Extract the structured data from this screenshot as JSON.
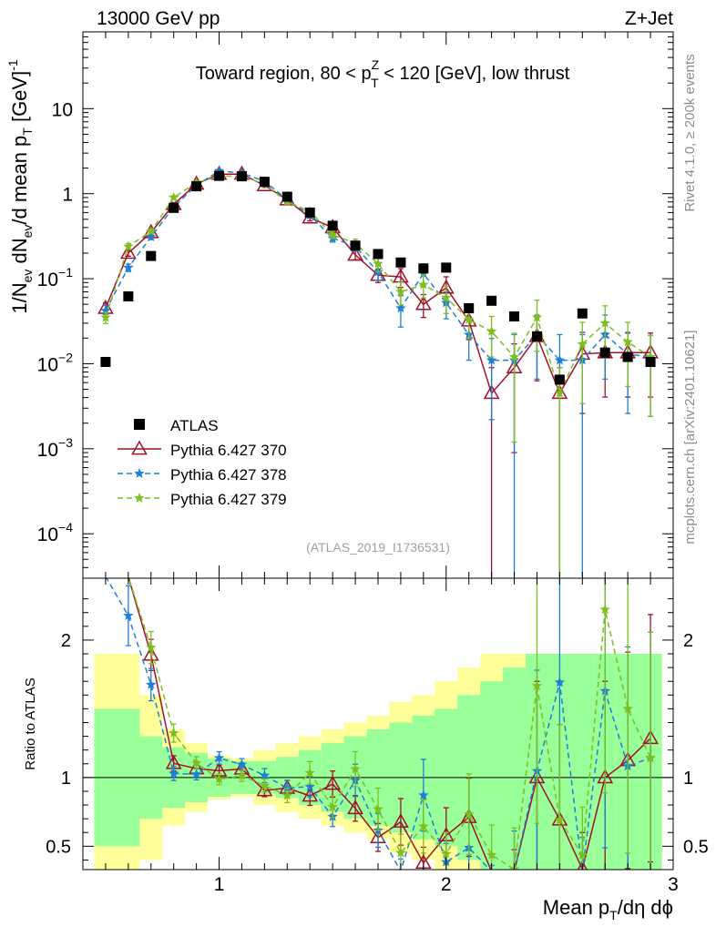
{
  "header": {
    "left": "13000 GeV pp",
    "right": "Z+Jet"
  },
  "side_labels": {
    "top": "Rivet 4.1.0, ≥ 200k events",
    "bottom": "mcplots.cern.ch [arXiv:2401.10621]"
  },
  "chart_data": {
    "type": "scatter",
    "title": "Toward region, 80 < pT^Z < 120 [GeV], low thrust",
    "title_parts": {
      "pre": "Toward region, 80 < p",
      "sup": "Z",
      "sub": "T",
      "post": " < 120 [GeV], low thrust"
    },
    "watermark": "(ATLAS_2019_I1736531)",
    "xlabel": "Mean pT/dη dϕ",
    "xlabel_parts": {
      "pre": "Mean p",
      "sub": "T",
      "post": "/dη dϕ"
    },
    "ylabel": "1/Nev dNev/d mean pT [GeV]^-1",
    "ylabel_parts": {
      "a": "1/N",
      "b": "ev",
      "c": " dN",
      "d": "ev",
      "e": "/d mean p",
      "f": "T",
      "g": " [GeV]",
      "h": "-1"
    },
    "ratio_ylabel": "Ratio to ATLAS",
    "xlim": [
      0.4,
      3.0
    ],
    "ylim": [
      3e-05,
      80
    ],
    "yscale": "log",
    "ratio_ylim": [
      0.33,
      2.45
    ],
    "x_ticks": [
      {
        "value": 1,
        "label": "1"
      },
      {
        "value": 2,
        "label": "2"
      },
      {
        "value": 3,
        "label": "3"
      }
    ],
    "y_ticks": [
      {
        "value": 10,
        "base": "10",
        "exp": ""
      },
      {
        "value": 1,
        "base": "1",
        "exp": ""
      },
      {
        "value": 0.1,
        "base": "10",
        "exp": "−1"
      },
      {
        "value": 0.01,
        "base": "10",
        "exp": "−2"
      },
      {
        "value": 0.001,
        "base": "10",
        "exp": "−3"
      },
      {
        "value": 0.0001,
        "base": "10",
        "exp": "−4"
      }
    ],
    "ratio_ticks": [
      {
        "value": 0.5,
        "label": "0.5"
      },
      {
        "value": 1,
        "label": "1"
      },
      {
        "value": 2,
        "label": "2"
      }
    ],
    "x": [
      0.5,
      0.6,
      0.7,
      0.8,
      0.9,
      1.0,
      1.1,
      1.2,
      1.3,
      1.4,
      1.5,
      1.6,
      1.7,
      1.8,
      1.9,
      2.0,
      2.1,
      2.2,
      2.3,
      2.4,
      2.5,
      2.6,
      2.7,
      2.8,
      2.9
    ],
    "bin_edges": [
      0.45,
      0.55,
      0.65,
      0.75,
      0.85,
      0.95,
      1.05,
      1.15,
      1.25,
      1.35,
      1.45,
      1.55,
      1.65,
      1.75,
      1.85,
      1.95,
      2.05,
      2.15,
      2.25,
      2.35,
      2.45,
      2.55,
      2.65,
      2.75,
      2.85,
      2.95
    ],
    "data": {
      "name": "ATLAS",
      "values": [
        0.0105,
        0.062,
        0.185,
        0.68,
        1.22,
        1.62,
        1.6,
        1.38,
        0.92,
        0.6,
        0.42,
        0.245,
        0.195,
        0.155,
        0.132,
        0.135,
        0.045,
        0.055,
        0.036,
        0.021,
        0.0065,
        0.039,
        0.0135,
        0.012,
        0.0105
      ],
      "band_inner": [
        0.5,
        0.5,
        0.3,
        0.22,
        0.18,
        0.14,
        0.12,
        0.12,
        0.15,
        0.2,
        0.25,
        0.3,
        0.35,
        0.4,
        0.45,
        0.5,
        0.6,
        0.7,
        0.8,
        0.9,
        0.9,
        0.9,
        0.9,
        0.9,
        0.9
      ],
      "band_outer": [
        0.9,
        0.9,
        0.6,
        0.35,
        0.25,
        0.16,
        0.14,
        0.2,
        0.25,
        0.3,
        0.35,
        0.4,
        0.45,
        0.55,
        0.6,
        0.7,
        0.8,
        0.9,
        0.9,
        0.9,
        0.9,
        0.9,
        0.9,
        0.9,
        0.9
      ]
    },
    "series": [
      {
        "name": "Pythia 6.427 370",
        "color": "#a0102a",
        "marker": "triangle",
        "dash": "",
        "values": [
          0.045,
          0.2,
          0.35,
          0.75,
          1.3,
          1.7,
          1.7,
          1.25,
          0.85,
          0.52,
          0.4,
          0.19,
          0.11,
          0.105,
          0.05,
          0.078,
          0.032,
          0.0045,
          0.009,
          0.021,
          0.0045,
          0.013,
          0.0135,
          0.0135,
          0.0135
        ],
        "errors": [
          0.15,
          0.08,
          0.06,
          0.05,
          0.04,
          0.04,
          0.04,
          0.05,
          0.06,
          0.08,
          0.1,
          0.12,
          0.18,
          0.25,
          0.3,
          0.35,
          0.4,
          1.0,
          0.9,
          0.7,
          1.0,
          0.8,
          0.7,
          0.7,
          0.7
        ]
      },
      {
        "name": "Pythia 6.427 378",
        "color": "#1f7fd8",
        "marker": "star",
        "dash": "6,4",
        "values": [
          0.042,
          0.135,
          0.31,
          0.7,
          1.25,
          1.85,
          1.75,
          1.4,
          0.85,
          0.56,
          0.3,
          0.24,
          0.12,
          0.045,
          0.115,
          0.052,
          0.022,
          0.011,
          0.011,
          0.022,
          0.011,
          0.011,
          0.022,
          0.013,
          0.012
        ],
        "errors": [
          0.15,
          0.1,
          0.07,
          0.05,
          0.04,
          0.04,
          0.04,
          0.05,
          0.06,
          0.08,
          0.1,
          0.12,
          0.2,
          0.4,
          0.3,
          0.35,
          0.5,
          0.8,
          1.0,
          0.7,
          1.0,
          1.0,
          0.7,
          0.8,
          0.8
        ]
      },
      {
        "name": "Pythia 6.427 379",
        "color": "#7cbf1e",
        "marker": "star",
        "dash": "6,4",
        "values": [
          0.035,
          0.24,
          0.36,
          0.9,
          1.35,
          1.6,
          1.62,
          1.3,
          0.8,
          0.62,
          0.33,
          0.26,
          0.15,
          0.07,
          0.085,
          0.06,
          0.033,
          0.024,
          0.012,
          0.035,
          0.0045,
          0.017,
          0.03,
          0.018,
          0.012
        ],
        "errors": [
          0.15,
          0.08,
          0.06,
          0.05,
          0.04,
          0.04,
          0.04,
          0.05,
          0.06,
          0.08,
          0.1,
          0.12,
          0.2,
          0.3,
          0.3,
          0.35,
          0.4,
          0.5,
          0.9,
          0.6,
          1.0,
          0.8,
          0.6,
          0.7,
          0.8
        ]
      }
    ]
  }
}
